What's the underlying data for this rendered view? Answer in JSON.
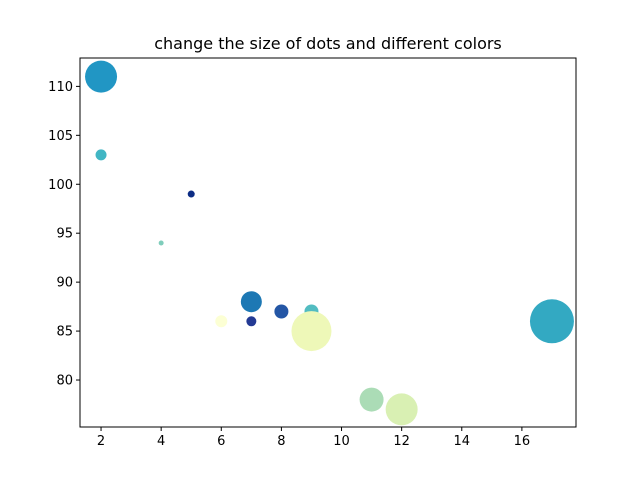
{
  "chart_data": {
    "type": "scatter",
    "title": "change the size of dots and different colors",
    "xlabel": "",
    "ylabel": "",
    "xlim": [
      1.3,
      17.8
    ],
    "ylim": [
      75.2,
      112.9
    ],
    "xticks": [
      2,
      4,
      6,
      8,
      10,
      12,
      14,
      16
    ],
    "yticks": [
      80,
      85,
      90,
      95,
      100,
      105,
      110
    ],
    "grid": false,
    "points": [
      {
        "x": 2,
        "y": 111,
        "size": 16,
        "color": "#2196c4"
      },
      {
        "x": 2,
        "y": 103,
        "size": 5.5,
        "color": "#41b6c4"
      },
      {
        "x": 5,
        "y": 99,
        "size": 3.5,
        "color": "#0c2c84"
      },
      {
        "x": 4,
        "y": 94,
        "size": 2.5,
        "color": "#7fcdbb"
      },
      {
        "x": 7,
        "y": 88,
        "size": 10.5,
        "color": "#1d78b4"
      },
      {
        "x": 8,
        "y": 87,
        "size": 7,
        "color": "#2456a5"
      },
      {
        "x": 9,
        "y": 87,
        "size": 7,
        "color": "#52bcc1"
      },
      {
        "x": 6,
        "y": 86,
        "size": 6,
        "color": "#fcffd4"
      },
      {
        "x": 7,
        "y": 86,
        "size": 5,
        "color": "#233a94"
      },
      {
        "x": 9,
        "y": 85,
        "size": 20,
        "color": "#eef8b8"
      },
      {
        "x": 17,
        "y": 86,
        "size": 22,
        "color": "#33a9c2"
      },
      {
        "x": 11,
        "y": 78,
        "size": 12,
        "color": "#abdcb6"
      },
      {
        "x": 12,
        "y": 77,
        "size": 16,
        "color": "#d9f0b3"
      }
    ]
  }
}
